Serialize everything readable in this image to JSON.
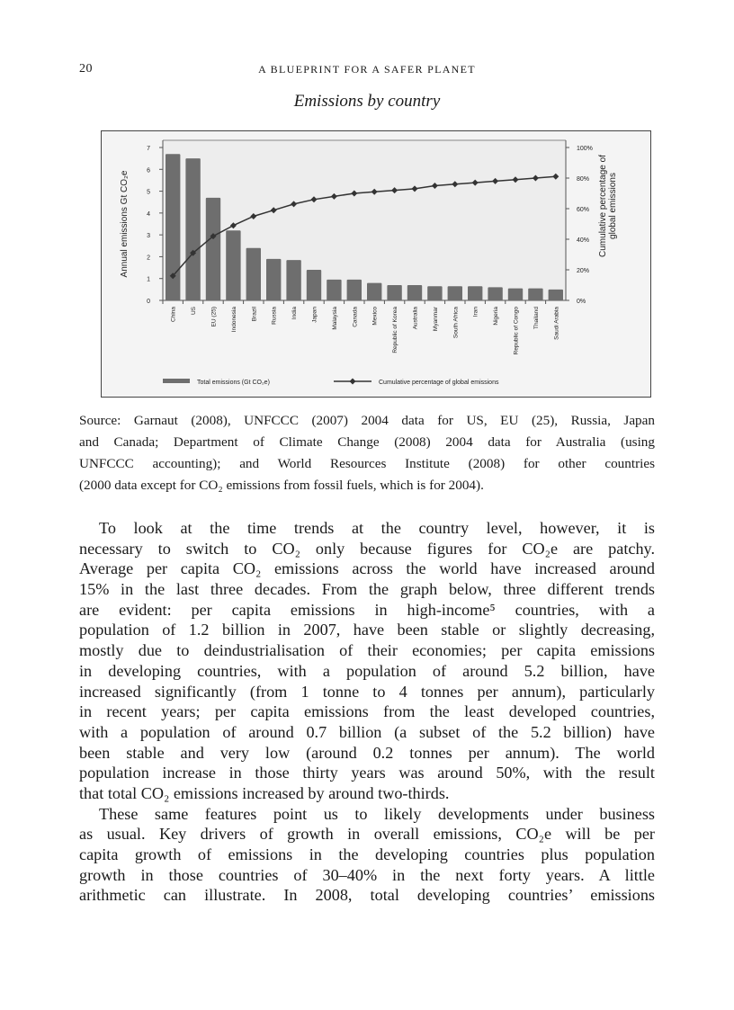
{
  "header": {
    "page_number": "20",
    "running_title": "A BLUEPRINT FOR A SAFER PLANET"
  },
  "figure": {
    "title": "Emissions by country"
  },
  "chart_data": {
    "type": "bar",
    "categories": [
      "China",
      "US",
      "EU (25)",
      "Indonesia",
      "Brazil",
      "Russia",
      "India",
      "Japan",
      "Malaysia",
      "Canada",
      "Mexico",
      "Republic of Korea",
      "Australia",
      "Myanmar",
      "South Africa",
      "Iran",
      "Nigeria",
      "Republic of Congo",
      "Thailand",
      "Saudi Arabia"
    ],
    "series": [
      {
        "name": "Total emissions (Gt CO₂e)",
        "type": "bar",
        "axis": "left",
        "values": [
          6.7,
          6.5,
          4.7,
          3.2,
          2.4,
          1.9,
          1.85,
          1.4,
          0.95,
          0.95,
          0.8,
          0.7,
          0.7,
          0.65,
          0.65,
          0.65,
          0.6,
          0.55,
          0.55,
          0.5
        ]
      },
      {
        "name": "Cumulative percentage of global emissions",
        "type": "line",
        "axis": "right",
        "values": [
          16,
          31,
          42,
          49,
          55,
          59,
          63,
          66,
          68,
          70,
          71,
          72,
          73,
          75,
          76,
          77,
          78,
          79,
          80,
          81
        ]
      }
    ],
    "ylabel": "Annual emissions Gt CO₂e",
    "ylabel_right": "Cumulative percentage of global emissions",
    "ylim": [
      0,
      7
    ],
    "ylim_right": [
      0,
      100
    ],
    "yticks": [
      "0",
      "1",
      "2",
      "3",
      "4",
      "5",
      "6",
      "7"
    ],
    "yticks_right": [
      "0%",
      "20%",
      "40%",
      "60%",
      "80%",
      "100%"
    ],
    "legend_placement": "bottom",
    "grid": false,
    "colors": {
      "bar": "#6e6e6e",
      "line": "#333333",
      "background": "#ededed"
    }
  },
  "caption": {
    "lines": [
      "Source: Garnaut (2008), UNFCCC (2007) 2004 data for US, EU (25), Russia, Japan",
      "and Canada; Department of Climate Change (2008) 2004 data for Australia (using",
      "UNFCCC accounting); and World Resources Institute (2008) for other countries",
      "(2000 data except for CO₂ emissions from fossil fuels, which is for 2004)."
    ]
  },
  "body": {
    "paragraphs": [
      {
        "lines": [
          "To look at the time trends at the country level, however, it is",
          "necessary to switch to CO₂ only because figures for CO₂e are patchy.",
          "Average per capita CO₂ emissions across the world have increased around",
          "15% in the last three decades. From the graph below, three different trends",
          "are evident: per capita emissions in high-income⁵ countries, with a",
          "population of 1.2 billion in 2007, have been stable or slightly decreasing,",
          "mostly due to deindustrialisation of their economies; per capita emissions",
          "in developing countries, with a population of around 5.2 billion, have",
          "increased significantly (from 1 tonne to 4 tonnes per annum), particularly",
          "in recent years; per capita emissions from the least developed countries,",
          "with a population of around 0.7 billion (a subset of the 5.2 billion) have",
          "been stable and very low (around 0.2 tonnes per annum). The world",
          "population increase in those thirty years was around 50%, with the result",
          "that total CO₂ emissions increased by around two-thirds."
        ]
      },
      {
        "lines": [
          "These same features point us to likely developments under business",
          "as usual. Key drivers of growth in overall emissions, CO₂e will be per",
          "capita growth of emissions in the developing countries plus population",
          "growth in those countries of 30–40% in the next forty years. A little",
          "arithmetic can illustrate. In 2008, total developing countries’ emissions"
        ],
        "continues": true
      }
    ]
  }
}
